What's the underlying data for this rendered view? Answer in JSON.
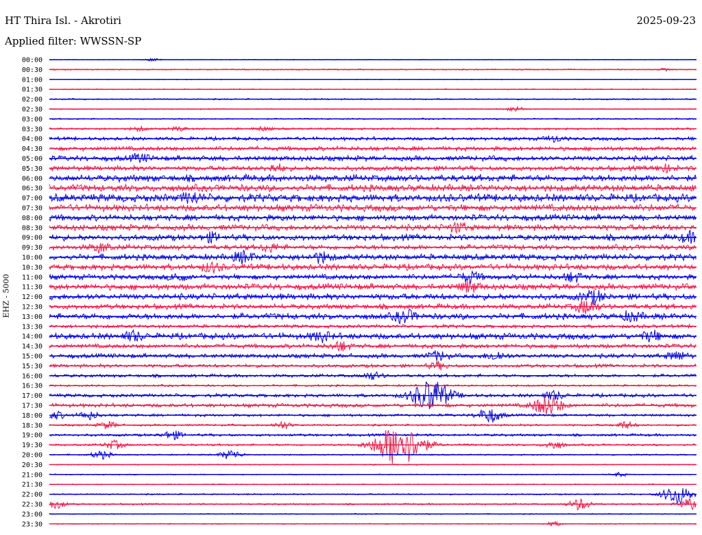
{
  "header": {
    "station": "HT Thira Isl. - Akrotiri",
    "date": "2025-09-23",
    "filter_label": "Applied filter: WWSSN-SP"
  },
  "chart_data": {
    "type": "line",
    "title": "HT Thira Isl. - Akrotiri",
    "subtitle": "Applied filter: WWSSN-SP",
    "ylabel": "EHZ - 5000",
    "xlabel": "",
    "colors": {
      "even_row": "#0000e0",
      "odd_row": "#f01848"
    },
    "rows": [
      {
        "label": "00:00",
        "amp": 0.4,
        "events": [
          [
            0.16,
            2
          ]
        ]
      },
      {
        "label": "00:30",
        "amp": 0.7,
        "events": [
          [
            0.95,
            1.5
          ]
        ]
      },
      {
        "label": "01:00",
        "amp": 0.4,
        "events": []
      },
      {
        "label": "01:30",
        "amp": 0.6,
        "events": []
      },
      {
        "label": "02:00",
        "amp": 0.8,
        "events": []
      },
      {
        "label": "02:30",
        "amp": 0.6,
        "events": [
          [
            0.72,
            4
          ]
        ]
      },
      {
        "label": "03:00",
        "amp": 0.8,
        "events": []
      },
      {
        "label": "03:30",
        "amp": 1.2,
        "events": [
          [
            0.14,
            3
          ],
          [
            0.2,
            3
          ],
          [
            0.33,
            3
          ]
        ]
      },
      {
        "label": "04:00",
        "amp": 2.0,
        "events": [
          [
            0.78,
            4
          ]
        ]
      },
      {
        "label": "04:30",
        "amp": 2.5,
        "events": []
      },
      {
        "label": "05:00",
        "amp": 3.0,
        "events": [
          [
            0.14,
            5
          ]
        ]
      },
      {
        "label": "05:30",
        "amp": 2.8,
        "events": [
          [
            0.35,
            5
          ],
          [
            0.95,
            5
          ]
        ]
      },
      {
        "label": "06:00",
        "amp": 4.0,
        "events": []
      },
      {
        "label": "06:30",
        "amp": 4.0,
        "events": []
      },
      {
        "label": "07:00",
        "amp": 4.5,
        "events": [
          [
            0.22,
            6
          ]
        ]
      },
      {
        "label": "07:30",
        "amp": 4.0,
        "events": []
      },
      {
        "label": "08:00",
        "amp": 3.5,
        "events": []
      },
      {
        "label": "08:30",
        "amp": 3.5,
        "events": [
          [
            0.63,
            6
          ]
        ]
      },
      {
        "label": "09:00",
        "amp": 3.5,
        "events": [
          [
            0.25,
            5
          ],
          [
            0.99,
            6
          ]
        ]
      },
      {
        "label": "09:30",
        "amp": 3.0,
        "events": [
          [
            0.08,
            6
          ],
          [
            0.34,
            5
          ]
        ]
      },
      {
        "label": "10:00",
        "amp": 3.5,
        "events": [
          [
            0.3,
            7
          ],
          [
            0.42,
            6
          ]
        ]
      },
      {
        "label": "10:30",
        "amp": 3.5,
        "events": [
          [
            0.25,
            6
          ]
        ]
      },
      {
        "label": "11:00",
        "amp": 3.0,
        "events": [
          [
            0.2,
            5
          ],
          [
            0.65,
            7
          ],
          [
            0.81,
            6
          ]
        ]
      },
      {
        "label": "11:30",
        "amp": 3.5,
        "events": [
          [
            0.65,
            7
          ]
        ]
      },
      {
        "label": "12:00",
        "amp": 3.5,
        "events": [
          [
            0.84,
            8
          ]
        ]
      },
      {
        "label": "12:30",
        "amp": 3.0,
        "events": [
          [
            0.83,
            9
          ]
        ]
      },
      {
        "label": "13:00",
        "amp": 3.5,
        "events": [
          [
            0.55,
            8
          ],
          [
            0.9,
            6
          ]
        ]
      },
      {
        "label": "13:30",
        "amp": 2.0,
        "events": []
      },
      {
        "label": "14:00",
        "amp": 3.5,
        "events": [
          [
            0.13,
            6
          ],
          [
            0.42,
            6
          ],
          [
            0.93,
            6
          ]
        ]
      },
      {
        "label": "14:30",
        "amp": 2.5,
        "events": [
          [
            0.45,
            6
          ]
        ]
      },
      {
        "label": "15:00",
        "amp": 2.5,
        "events": [
          [
            0.6,
            6
          ],
          [
            0.69,
            6
          ],
          [
            0.97,
            6
          ]
        ]
      },
      {
        "label": "15:30",
        "amp": 2.0,
        "events": [
          [
            0.6,
            5
          ]
        ]
      },
      {
        "label": "16:00",
        "amp": 1.8,
        "events": [
          [
            0.5,
            5
          ]
        ]
      },
      {
        "label": "16:30",
        "amp": 1.2,
        "events": []
      },
      {
        "label": "17:00",
        "amp": 2.0,
        "events": [
          [
            0.59,
            22
          ],
          [
            0.78,
            6
          ]
        ]
      },
      {
        "label": "17:30",
        "amp": 2.2,
        "events": [
          [
            0.77,
            14
          ]
        ]
      },
      {
        "label": "18:00",
        "amp": 1.5,
        "events": [
          [
            0.01,
            5
          ],
          [
            0.06,
            6
          ],
          [
            0.68,
            10
          ]
        ]
      },
      {
        "label": "18:30",
        "amp": 1.2,
        "events": [
          [
            0.09,
            5
          ],
          [
            0.36,
            5
          ],
          [
            0.89,
            5
          ]
        ]
      },
      {
        "label": "19:00",
        "amp": 1.5,
        "events": [
          [
            0.19,
            6
          ]
        ]
      },
      {
        "label": "19:30",
        "amp": 1.2,
        "events": [
          [
            0.1,
            6
          ],
          [
            0.54,
            30
          ],
          [
            0.78,
            6
          ]
        ]
      },
      {
        "label": "20:00",
        "amp": 0.8,
        "events": [
          [
            0.08,
            6
          ],
          [
            0.28,
            7
          ]
        ]
      },
      {
        "label": "20:30",
        "amp": 0.6,
        "events": []
      },
      {
        "label": "21:00",
        "amp": 0.6,
        "events": [
          [
            0.88,
            3
          ]
        ]
      },
      {
        "label": "21:30",
        "amp": 0.6,
        "events": []
      },
      {
        "label": "22:00",
        "amp": 0.8,
        "events": [
          [
            0.97,
            14
          ]
        ]
      },
      {
        "label": "22:30",
        "amp": 1.0,
        "events": [
          [
            0.01,
            6
          ],
          [
            0.82,
            8
          ],
          [
            0.99,
            8
          ]
        ]
      },
      {
        "label": "23:00",
        "amp": 0.6,
        "events": []
      },
      {
        "label": "23:30",
        "amp": 0.6,
        "events": [
          [
            0.78,
            3
          ]
        ]
      }
    ]
  }
}
